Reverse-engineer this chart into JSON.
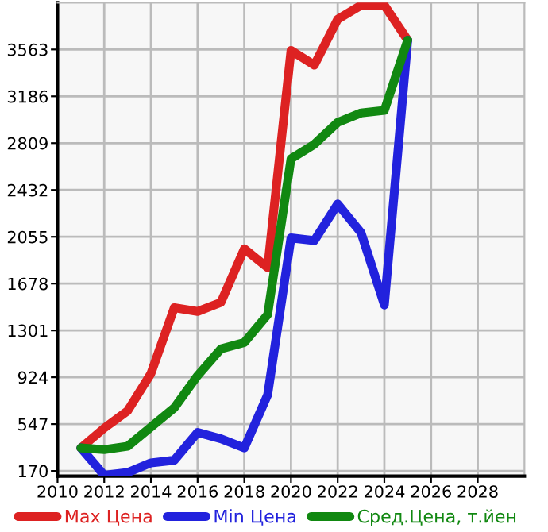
{
  "chart_data": {
    "type": "line",
    "x": [
      2011,
      2012,
      2013,
      2014,
      2015,
      2016,
      2017,
      2018,
      2019,
      2020,
      2021,
      2022,
      2023,
      2024,
      2025
    ],
    "series": [
      {
        "name": "Max Цена",
        "color": "#dd2222",
        "values": [
          355,
          515,
          653,
          954,
          1484,
          1454,
          1527,
          1958,
          1807,
          3555,
          3437,
          3806,
          3919,
          3919,
          3638
        ]
      },
      {
        "name": "Min Цена",
        "color": "#2222dd",
        "values": [
          355,
          135,
          157,
          235,
          256,
          480,
          429,
          355,
          782,
          2046,
          2025,
          2319,
          2088,
          1506,
          3638
        ]
      },
      {
        "name": "Сред.Цена, т.йен",
        "color": "#118811",
        "values": [
          355,
          342,
          368,
          523,
          678,
          937,
          1152,
          1204,
          1428,
          2683,
          2800,
          2976,
          3052,
          3073,
          3638
        ]
      }
    ],
    "xlim": [
      2010,
      2030
    ],
    "ylim": [
      128,
      3940
    ],
    "xticks": [
      2010,
      2012,
      2014,
      2016,
      2018,
      2020,
      2022,
      2024,
      2026,
      2028
    ],
    "yticks": [
      170,
      547,
      924,
      1301,
      1678,
      2055,
      2432,
      2809,
      3186,
      3563
    ],
    "grid": true,
    "legend": "bottom",
    "marker": "none",
    "line_style": "solid"
  }
}
